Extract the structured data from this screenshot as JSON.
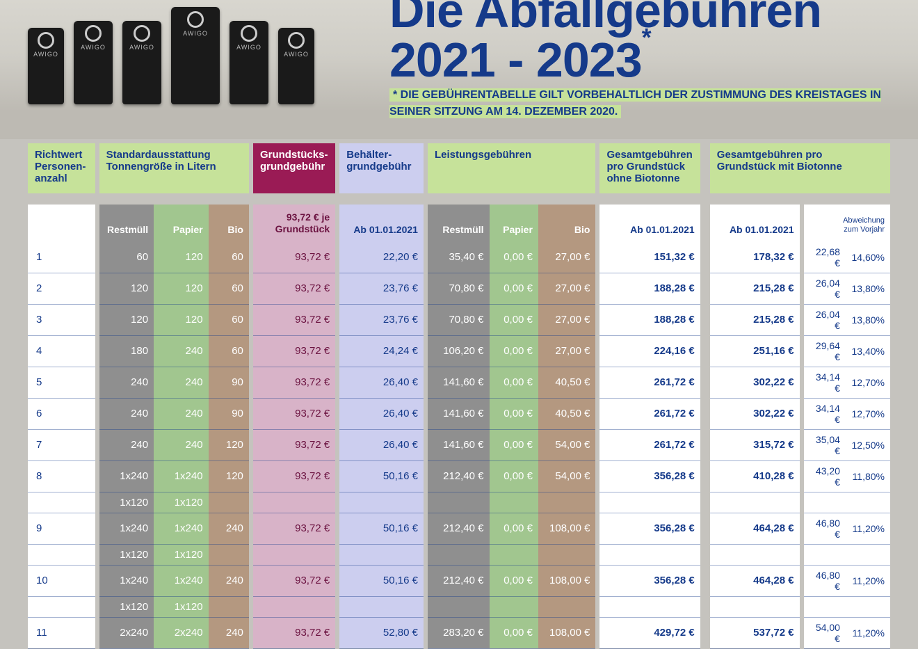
{
  "brand": "AWIGO",
  "headline_top": "Die Abfallgebühren",
  "headline_bottom": "2021 - 2023",
  "disclaimer": "* DIE GEBÜHRENTABELLE GILT VORBEHALTLICH DER ZUSTIMMUNG DES KREISTAGES IN SEINER SITZUNG AM 14. DEZEMBER 2020.",
  "colors": {
    "blue": "#153a8a",
    "green_head": "#c6e29a",
    "purple_head": "#9a1b55",
    "lavender_head": "#ccceef",
    "rest": "#8f8f8f",
    "papier": "#a1c68f",
    "bio": "#b49880",
    "grund_body": "#d8b3c8",
    "grund_text": "#6b1240"
  },
  "group_headers": {
    "richtwert": "Richtwert Personen-anzahl",
    "standard": "Standardausstattung Tonnengröße in Litern",
    "grund": "Grundstücks-grundgebühr",
    "behaelter": "Behälter-grundgebühr",
    "leistung": "Leistungsgebühren",
    "gesamt_ohne": "Gesamtgebühren pro Grundstück ohne Biotonne",
    "gesamt_mit": "Gesamtgebühren pro Grundstück mit Biotonne"
  },
  "sub_headers": {
    "rest": "Restmüll",
    "papier": "Papier",
    "bio": "Bio",
    "grund_top": "93,72 € je",
    "grund_bot": "Grundstück",
    "ab": "Ab 01.01.2021",
    "abw_top": "Abweichung",
    "abw_bot": "zum Vorjahr"
  },
  "rows": [
    {
      "n": "1",
      "rest": "60",
      "pap": "120",
      "bio": "60",
      "grund": "93,72 €",
      "beh": "22,20 €",
      "fr": "35,40 €",
      "fp": "0,00 €",
      "fb": "27,00 €",
      "t1": "151,32 €",
      "t2": "178,32 €",
      "d1": "22,68 €",
      "d2": "14,60%"
    },
    {
      "n": "2",
      "rest": "120",
      "pap": "120",
      "bio": "60",
      "grund": "93,72 €",
      "beh": "23,76 €",
      "fr": "70,80 €",
      "fp": "0,00 €",
      "fb": "27,00 €",
      "t1": "188,28 €",
      "t2": "215,28 €",
      "d1": "26,04 €",
      "d2": "13,80%"
    },
    {
      "n": "3",
      "rest": "120",
      "pap": "120",
      "bio": "60",
      "grund": "93,72 €",
      "beh": "23,76 €",
      "fr": "70,80 €",
      "fp": "0,00 €",
      "fb": "27,00 €",
      "t1": "188,28 €",
      "t2": "215,28 €",
      "d1": "26,04 €",
      "d2": "13,80%"
    },
    {
      "n": "4",
      "rest": "180",
      "pap": "240",
      "bio": "60",
      "grund": "93,72 €",
      "beh": "24,24 €",
      "fr": "106,20 €",
      "fp": "0,00 €",
      "fb": "27,00 €",
      "t1": "224,16 €",
      "t2": "251,16 €",
      "d1": "29,64 €",
      "d2": "13,40%"
    },
    {
      "n": "5",
      "rest": "240",
      "pap": "240",
      "bio": "90",
      "grund": "93,72 €",
      "beh": "26,40 €",
      "fr": "141,60 €",
      "fp": "0,00 €",
      "fb": "40,50 €",
      "t1": "261,72 €",
      "t2": "302,22 €",
      "d1": "34,14 €",
      "d2": "12,70%"
    },
    {
      "n": "6",
      "rest": "240",
      "pap": "240",
      "bio": "90",
      "grund": "93,72 €",
      "beh": "26,40 €",
      "fr": "141,60 €",
      "fp": "0,00 €",
      "fb": "40,50 €",
      "t1": "261,72 €",
      "t2": "302,22 €",
      "d1": "34,14 €",
      "d2": "12,70%"
    },
    {
      "n": "7",
      "rest": "240",
      "pap": "240",
      "bio": "120",
      "grund": "93,72 €",
      "beh": "26,40 €",
      "fr": "141,60 €",
      "fp": "0,00 €",
      "fb": "54,00 €",
      "t1": "261,72 €",
      "t2": "315,72 €",
      "d1": "35,04 €",
      "d2": "12,50%"
    },
    {
      "n": "8",
      "rest": "1x240",
      "pap": "1x240",
      "bio": "120",
      "grund": "93,72 €",
      "beh": "50,16 €",
      "fr": "212,40 €",
      "fp": "0,00 €",
      "fb": "54,00 €",
      "t1": "356,28 €",
      "t2": "410,28 €",
      "d1": "43,20 €",
      "d2": "11,80%",
      "rest2": "1x120",
      "pap2": "1x120"
    },
    {
      "n": "9",
      "rest": "1x240",
      "pap": "1x240",
      "bio": "240",
      "grund": "93,72 €",
      "beh": "50,16 €",
      "fr": "212,40 €",
      "fp": "0,00 €",
      "fb": "108,00 €",
      "t1": "356,28 €",
      "t2": "464,28 €",
      "d1": "46,80 €",
      "d2": "11,20%",
      "rest2": "1x120",
      "pap2": "1x120"
    },
    {
      "n": "10",
      "rest": "1x240",
      "pap": "1x240",
      "bio": "240",
      "grund": "93,72 €",
      "beh": "50,16 €",
      "fr": "212,40 €",
      "fp": "0,00 €",
      "fb": "108,00 €",
      "t1": "356,28 €",
      "t2": "464,28 €",
      "d1": "46,80 €",
      "d2": "11,20%",
      "rest2": "1x120",
      "pap2": "1x120"
    },
    {
      "n": "11",
      "rest": "2x240",
      "pap": "2x240",
      "bio": "240",
      "grund": "93,72 €",
      "beh": "52,80 €",
      "fr": "283,20 €",
      "fp": "0,00 €",
      "fb": "108,00 €",
      "t1": "429,72 €",
      "t2": "537,72 €",
      "d1": "54,00 €",
      "d2": "11,20%"
    }
  ]
}
